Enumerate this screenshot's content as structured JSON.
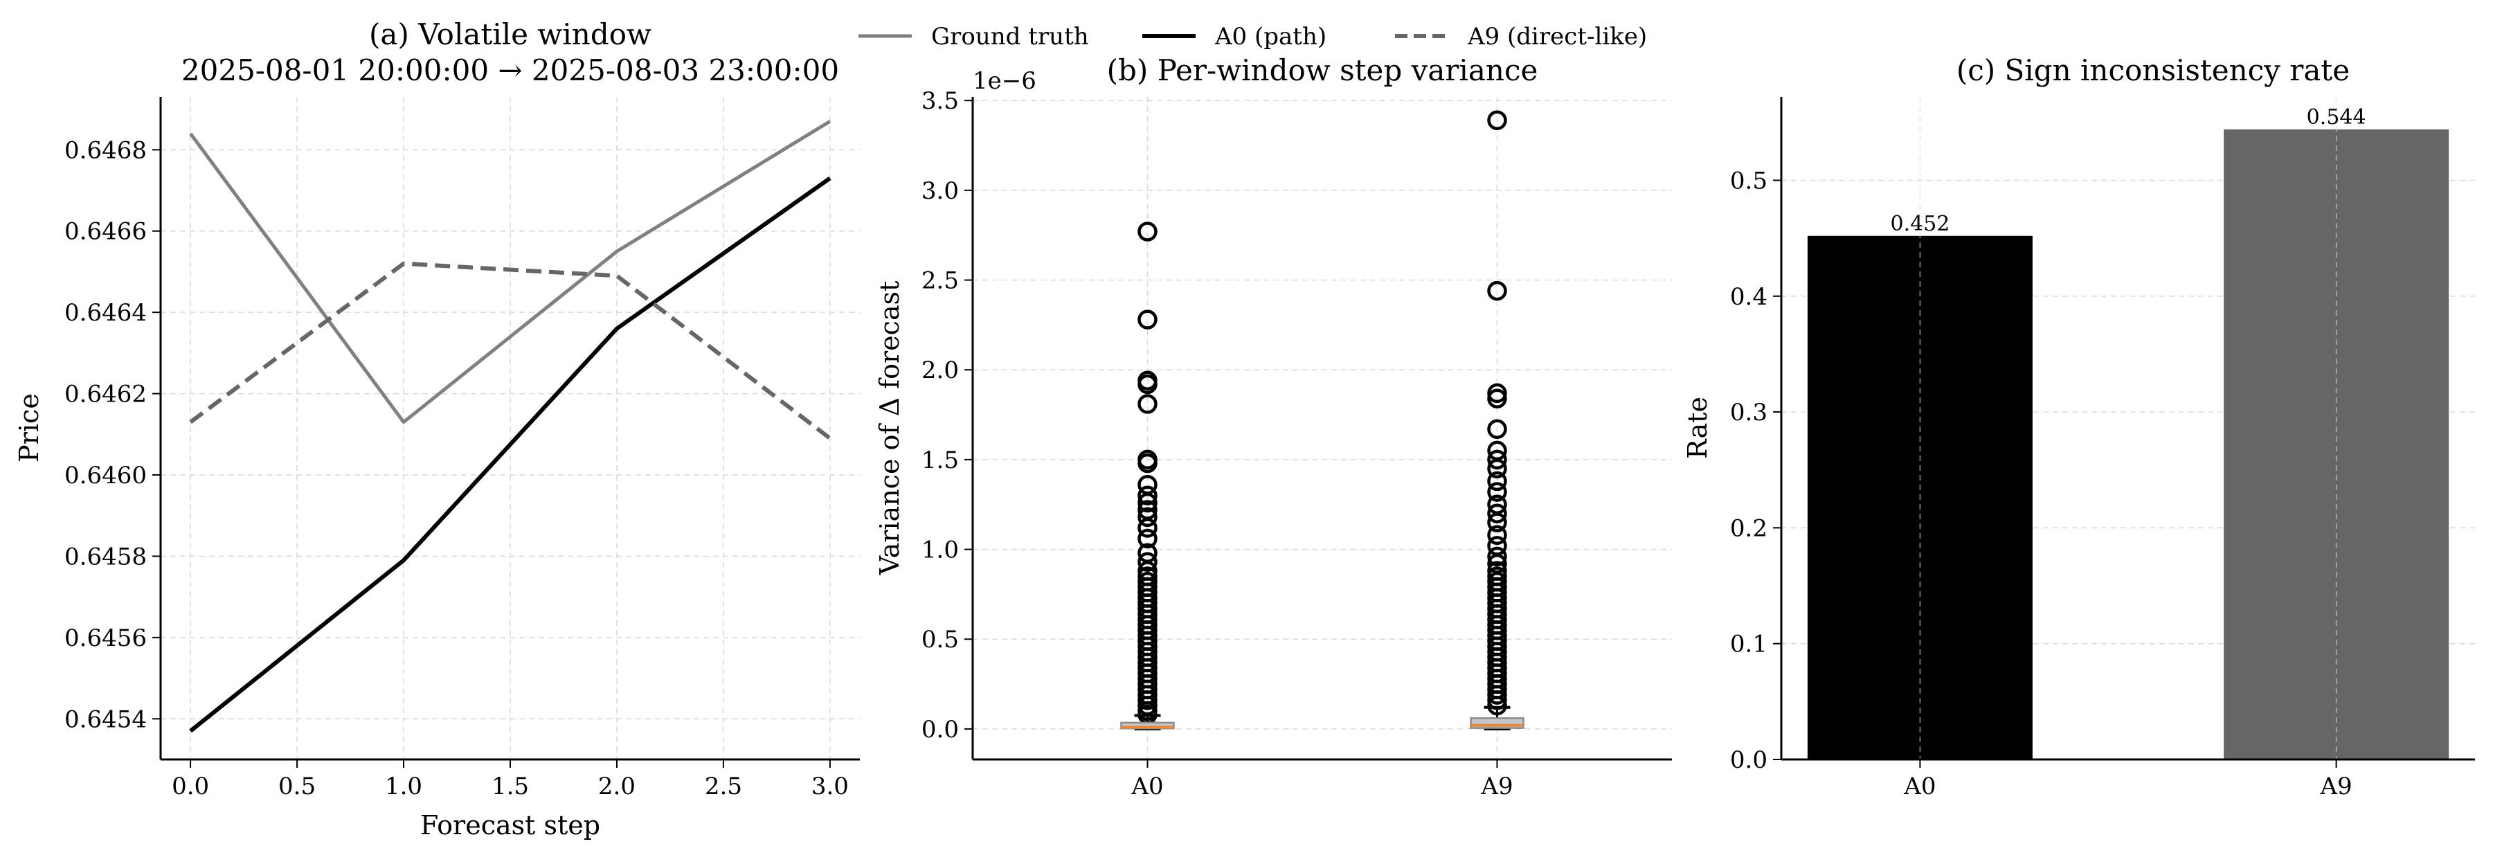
{
  "legend": {
    "entries": [
      {
        "label": "Ground truth",
        "color": "#808080",
        "style": "solid"
      },
      {
        "label": "A0 (path)",
        "color": "#000000",
        "style": "solid"
      },
      {
        "label": "A9 (direct-like)",
        "color": "#666666",
        "style": "dashed"
      }
    ]
  },
  "chart_data": [
    {
      "type": "line",
      "title": "(a) Volatile window",
      "subtitle": "2025-08-01 20:00:00 → 2025-08-03 23:00:00",
      "xlabel": "Forecast step",
      "ylabel": "Price",
      "xlim": [
        -0.14,
        3.14
      ],
      "ylim": [
        0.6453,
        0.64693
      ],
      "x_ticks": [
        0.0,
        0.5,
        1.0,
        1.5,
        2.0,
        2.5,
        3.0
      ],
      "x_tick_labels": [
        "0.0",
        "0.5",
        "1.0",
        "1.5",
        "2.0",
        "2.5",
        "3.0"
      ],
      "y_ticks": [
        0.6454,
        0.6456,
        0.6458,
        0.646,
        0.6462,
        0.6464,
        0.6466,
        0.6468
      ],
      "y_tick_labels": [
        "0.6454",
        "0.6456",
        "0.6458",
        "0.6460",
        "0.6462",
        "0.6464",
        "0.6466",
        "0.6468"
      ],
      "grid": true,
      "series": [
        {
          "name": "Ground truth",
          "x": [
            0,
            1,
            2,
            3
          ],
          "values": [
            0.64684,
            0.64613,
            0.64655,
            0.64687
          ],
          "color": "#808080",
          "style": "solid"
        },
        {
          "name": "A0 (path)",
          "x": [
            0,
            1,
            2,
            3
          ],
          "values": [
            0.64537,
            0.64579,
            0.64636,
            0.64673
          ],
          "color": "#000000",
          "style": "solid"
        },
        {
          "name": "A9 (direct-like)",
          "x": [
            0,
            1,
            2,
            3
          ],
          "values": [
            0.64613,
            0.64652,
            0.64649,
            0.64609
          ],
          "color": "#666666",
          "style": "dashed"
        }
      ]
    },
    {
      "type": "box",
      "title": "(b) Per-window step variance",
      "ylabel": "Variance of Δ forecast",
      "y_offset_label": "1e−6",
      "ylim": [
        -0.17,
        3.52
      ],
      "y_ticks": [
        0.0,
        0.5,
        1.0,
        1.5,
        2.0,
        2.5,
        3.0,
        3.5
      ],
      "y_tick_labels": [
        "0.0",
        "0.5",
        "1.0",
        "1.5",
        "2.0",
        "2.5",
        "3.0",
        "3.5"
      ],
      "categories": [
        "A0",
        "A9"
      ],
      "grid": true,
      "boxes": [
        {
          "name": "A0",
          "q1": 0.003,
          "median": 0.01,
          "q3": 0.035,
          "whisker_low": 0.0,
          "whisker_high": 0.075,
          "outliers": [
            2.77,
            2.28,
            1.94,
            1.92,
            1.81,
            1.5,
            1.48,
            1.36,
            1.3,
            1.26,
            1.22,
            1.18,
            1.12,
            1.06,
            0.98,
            0.93,
            0.88,
            0.85,
            0.82,
            0.79,
            0.76,
            0.73,
            0.7,
            0.67,
            0.64,
            0.61,
            0.58,
            0.55,
            0.52,
            0.49,
            0.46,
            0.43,
            0.4,
            0.37,
            0.34,
            0.31,
            0.28,
            0.25,
            0.22,
            0.19,
            0.16,
            0.13,
            0.1,
            0.08
          ]
        },
        {
          "name": "A9",
          "q1": 0.005,
          "median": 0.02,
          "q3": 0.06,
          "whisker_low": 0.0,
          "whisker_high": 0.12,
          "outliers": [
            3.39,
            2.44,
            1.87,
            1.84,
            1.67,
            1.55,
            1.5,
            1.45,
            1.38,
            1.32,
            1.25,
            1.2,
            1.15,
            1.08,
            1.02,
            0.96,
            0.92,
            0.88,
            0.85,
            0.82,
            0.79,
            0.76,
            0.73,
            0.7,
            0.67,
            0.64,
            0.61,
            0.58,
            0.55,
            0.52,
            0.49,
            0.46,
            0.43,
            0.4,
            0.37,
            0.34,
            0.31,
            0.28,
            0.25,
            0.22,
            0.19,
            0.16,
            0.13
          ]
        }
      ]
    },
    {
      "type": "bar",
      "title": "(c) Sign inconsistency rate",
      "ylabel": "Rate",
      "categories": [
        "A0",
        "A9"
      ],
      "values": [
        0.452,
        0.544
      ],
      "value_labels": [
        "0.452",
        "0.544"
      ],
      "colors": [
        "#000000",
        "#666666"
      ],
      "ylim": [
        0.0,
        0.572
      ],
      "y_ticks": [
        0.0,
        0.1,
        0.2,
        0.3,
        0.4,
        0.5
      ],
      "y_tick_labels": [
        "0.0",
        "0.1",
        "0.2",
        "0.3",
        "0.4",
        "0.5"
      ],
      "grid": true
    }
  ]
}
